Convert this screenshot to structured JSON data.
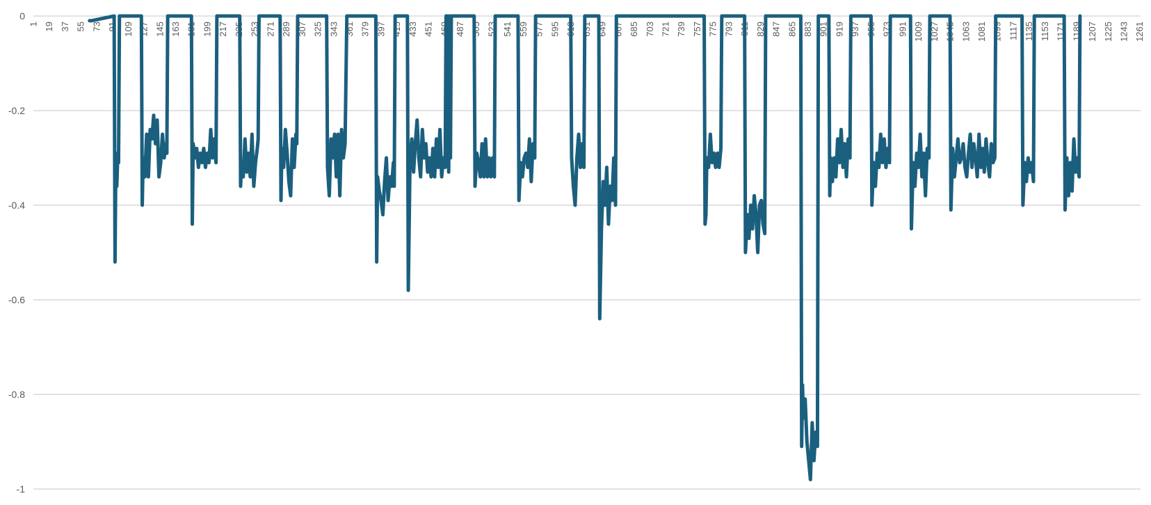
{
  "chart_data": {
    "type": "line",
    "title": "",
    "xlabel": "",
    "ylabel": "",
    "ylim": [
      -1,
      0
    ],
    "yticks": [
      0,
      -0.2,
      -0.4,
      -0.6,
      -0.8,
      -1
    ],
    "ytick_labels": [
      "0",
      "-0.2",
      "-0.4",
      "-0.6",
      "-0.8",
      "-1"
    ],
    "xlim": [
      1,
      1262
    ],
    "xticks": [
      1,
      19,
      37,
      55,
      73,
      91,
      109,
      127,
      145,
      163,
      181,
      199,
      217,
      235,
      253,
      271,
      289,
      307,
      325,
      343,
      361,
      379,
      397,
      415,
      433,
      451,
      469,
      487,
      505,
      523,
      541,
      559,
      577,
      595,
      613,
      631,
      649,
      667,
      685,
      703,
      721,
      739,
      757,
      775,
      793,
      811,
      829,
      847,
      865,
      883,
      901,
      919,
      937,
      955,
      973,
      991,
      1009,
      1027,
      1045,
      1063,
      1081,
      1099,
      1117,
      1135,
      1153,
      1171,
      1189,
      1207,
      1225,
      1243,
      1261
    ],
    "grid": true,
    "legend": "none",
    "colors": {
      "series": "#1b5f7e",
      "grid": "#d0d0d0",
      "text": "#595959"
    },
    "series": [
      {
        "values": [
          [
            65,
            -0.01
          ],
          [
            66,
            -0.01
          ],
          [
            67,
            -0.01
          ],
          [
            93,
            0
          ],
          [
            94,
            -0.52
          ],
          [
            95,
            -0.29
          ],
          [
            96,
            -0.36
          ],
          [
            97,
            -0.3
          ],
          [
            98,
            -0.31
          ],
          [
            99,
            0
          ],
          [
            124,
            0
          ],
          [
            125,
            -0.4
          ],
          [
            126,
            -0.3
          ],
          [
            128,
            -0.34
          ],
          [
            130,
            -0.25
          ],
          [
            132,
            -0.34
          ],
          [
            134,
            -0.24
          ],
          [
            136,
            -0.26
          ],
          [
            138,
            -0.21
          ],
          [
            140,
            -0.27
          ],
          [
            142,
            -0.22
          ],
          [
            144,
            -0.34
          ],
          [
            146,
            -0.31
          ],
          [
            148,
            -0.25
          ],
          [
            150,
            -0.3
          ],
          [
            152,
            -0.27
          ],
          [
            153,
            -0.29
          ],
          [
            154,
            0
          ],
          [
            181,
            0
          ],
          [
            182,
            -0.44
          ],
          [
            183,
            -0.27
          ],
          [
            185,
            -0.3
          ],
          [
            187,
            -0.28
          ],
          [
            189,
            -0.32
          ],
          [
            191,
            -0.29
          ],
          [
            193,
            -0.31
          ],
          [
            195,
            -0.28
          ],
          [
            197,
            -0.32
          ],
          [
            199,
            -0.29
          ],
          [
            201,
            -0.31
          ],
          [
            203,
            -0.24
          ],
          [
            205,
            -0.3
          ],
          [
            207,
            -0.26
          ],
          [
            209,
            -0.31
          ],
          [
            210,
            0
          ],
          [
            236,
            0
          ],
          [
            237,
            -0.36
          ],
          [
            238,
            -0.31
          ],
          [
            240,
            -0.34
          ],
          [
            242,
            -0.26
          ],
          [
            244,
            -0.33
          ],
          [
            246,
            -0.29
          ],
          [
            248,
            -0.34
          ],
          [
            250,
            -0.25
          ],
          [
            252,
            -0.36
          ],
          [
            254,
            -0.31
          ],
          [
            256,
            -0.28
          ],
          [
            257,
            -0.26
          ],
          [
            258,
            0
          ],
          [
            282,
            0
          ],
          [
            283,
            -0.39
          ],
          [
            284,
            -0.28
          ],
          [
            286,
            -0.32
          ],
          [
            288,
            -0.24
          ],
          [
            290,
            -0.29
          ],
          [
            292,
            -0.35
          ],
          [
            294,
            -0.38
          ],
          [
            296,
            -0.26
          ],
          [
            298,
            -0.32
          ],
          [
            300,
            -0.25
          ],
          [
            301,
            -0.27
          ],
          [
            302,
            0
          ],
          [
            335,
            0
          ],
          [
            336,
            -0.32
          ],
          [
            338,
            -0.38
          ],
          [
            340,
            -0.26
          ],
          [
            342,
            -0.3
          ],
          [
            344,
            -0.25
          ],
          [
            346,
            -0.34
          ],
          [
            348,
            -0.25
          ],
          [
            350,
            -0.38
          ],
          [
            352,
            -0.24
          ],
          [
            354,
            -0.3
          ],
          [
            356,
            -0.27
          ],
          [
            358,
            0
          ],
          [
            391,
            0
          ],
          [
            392,
            -0.52
          ],
          [
            393,
            -0.34
          ],
          [
            395,
            -0.37
          ],
          [
            397,
            -0.39
          ],
          [
            399,
            -0.42
          ],
          [
            401,
            -0.35
          ],
          [
            403,
            -0.3
          ],
          [
            405,
            -0.39
          ],
          [
            407,
            -0.34
          ],
          [
            409,
            -0.36
          ],
          [
            411,
            -0.31
          ],
          [
            412,
            -0.36
          ],
          [
            413,
            0
          ],
          [
            427,
            0
          ],
          [
            428,
            -0.58
          ],
          [
            430,
            -0.3
          ],
          [
            432,
            -0.26
          ],
          [
            434,
            -0.33
          ],
          [
            436,
            -0.27
          ],
          [
            438,
            -0.22
          ],
          [
            440,
            -0.3
          ],
          [
            442,
            -0.34
          ],
          [
            444,
            -0.24
          ],
          [
            446,
            -0.3
          ],
          [
            448,
            -0.27
          ],
          [
            450,
            -0.33
          ],
          [
            452,
            -0.3
          ],
          [
            454,
            -0.34
          ],
          [
            456,
            -0.28
          ],
          [
            458,
            -0.34
          ],
          [
            460,
            -0.26
          ],
          [
            462,
            -0.32
          ],
          [
            464,
            -0.24
          ],
          [
            466,
            -0.34
          ],
          [
            468,
            -0.3
          ],
          [
            470,
            -0.32
          ],
          [
            471,
            0
          ],
          [
            473,
            0
          ],
          [
            474,
            -0.33
          ],
          [
            475,
            0
          ],
          [
            476,
            -0.3
          ],
          [
            477,
            0
          ],
          [
            503,
            0
          ],
          [
            504,
            -0.36
          ],
          [
            506,
            -0.29
          ],
          [
            508,
            -0.31
          ],
          [
            510,
            -0.34
          ],
          [
            512,
            -0.27
          ],
          [
            514,
            -0.34
          ],
          [
            516,
            -0.26
          ],
          [
            518,
            -0.34
          ],
          [
            520,
            -0.3
          ],
          [
            522,
            -0.34
          ],
          [
            524,
            -0.3
          ],
          [
            526,
            -0.34
          ],
          [
            527,
            0
          ],
          [
            553,
            0
          ],
          [
            554,
            -0.39
          ],
          [
            556,
            -0.31
          ],
          [
            558,
            -0.34
          ],
          [
            560,
            -0.3
          ],
          [
            562,
            -0.29
          ],
          [
            564,
            -0.32
          ],
          [
            566,
            -0.26
          ],
          [
            568,
            -0.35
          ],
          [
            570,
            -0.27
          ],
          [
            572,
            -0.3
          ],
          [
            573,
            0
          ],
          [
            613,
            0
          ],
          [
            614,
            -0.3
          ],
          [
            616,
            -0.36
          ],
          [
            618,
            -0.4
          ],
          [
            620,
            -0.3
          ],
          [
            622,
            -0.25
          ],
          [
            624,
            -0.32
          ],
          [
            626,
            -0.27
          ],
          [
            628,
            -0.32
          ],
          [
            629,
            0
          ],
          [
            645,
            0
          ],
          [
            646,
            -0.64
          ],
          [
            648,
            -0.45
          ],
          [
            650,
            -0.35
          ],
          [
            652,
            -0.4
          ],
          [
            654,
            -0.32
          ],
          [
            656,
            -0.44
          ],
          [
            658,
            -0.36
          ],
          [
            660,
            -0.39
          ],
          [
            662,
            -0.3
          ],
          [
            664,
            -0.4
          ],
          [
            665,
            0
          ],
          [
            765,
            0
          ],
          [
            766,
            -0.44
          ],
          [
            767,
            -0.42
          ],
          [
            768,
            -0.3
          ],
          [
            770,
            -0.32
          ],
          [
            772,
            -0.25
          ],
          [
            774,
            -0.31
          ],
          [
            776,
            -0.29
          ],
          [
            778,
            -0.32
          ],
          [
            780,
            -0.29
          ],
          [
            782,
            -0.32
          ],
          [
            784,
            -0.28
          ],
          [
            785,
            0
          ],
          [
            811,
            0
          ],
          [
            812,
            -0.5
          ],
          [
            814,
            -0.42
          ],
          [
            816,
            -0.47
          ],
          [
            818,
            -0.4
          ],
          [
            820,
            -0.45
          ],
          [
            822,
            -0.38
          ],
          [
            824,
            -0.42
          ],
          [
            826,
            -0.5
          ],
          [
            828,
            -0.4
          ],
          [
            830,
            -0.39
          ],
          [
            832,
            -0.44
          ],
          [
            834,
            -0.46
          ],
          [
            835,
            0
          ],
          [
            875,
            0
          ],
          [
            876,
            -0.91
          ],
          [
            877,
            -0.78
          ],
          [
            878,
            -0.85
          ],
          [
            880,
            -0.81
          ],
          [
            882,
            -0.9
          ],
          [
            884,
            -0.94
          ],
          [
            886,
            -0.98
          ],
          [
            888,
            -0.86
          ],
          [
            890,
            -0.94
          ],
          [
            892,
            -0.88
          ],
          [
            894,
            -0.91
          ],
          [
            895,
            0
          ],
          [
            907,
            0
          ],
          [
            908,
            -0.38
          ],
          [
            909,
            -0.3
          ],
          [
            911,
            -0.35
          ],
          [
            913,
            -0.3
          ],
          [
            915,
            -0.34
          ],
          [
            917,
            -0.26
          ],
          [
            919,
            -0.31
          ],
          [
            921,
            -0.24
          ],
          [
            923,
            -0.32
          ],
          [
            925,
            -0.27
          ],
          [
            927,
            -0.34
          ],
          [
            929,
            -0.26
          ],
          [
            931,
            -0.3
          ],
          [
            932,
            0
          ],
          [
            955,
            0
          ],
          [
            956,
            -0.4
          ],
          [
            958,
            -0.31
          ],
          [
            960,
            -0.36
          ],
          [
            962,
            -0.29
          ],
          [
            964,
            -0.32
          ],
          [
            966,
            -0.25
          ],
          [
            968,
            -0.31
          ],
          [
            970,
            -0.26
          ],
          [
            972,
            -0.32
          ],
          [
            974,
            -0.28
          ],
          [
            976,
            -0.31
          ],
          [
            977,
            0
          ],
          [
            1000,
            0
          ],
          [
            1001,
            -0.45
          ],
          [
            1003,
            -0.31
          ],
          [
            1005,
            -0.36
          ],
          [
            1007,
            -0.29
          ],
          [
            1009,
            -0.32
          ],
          [
            1011,
            -0.25
          ],
          [
            1013,
            -0.34
          ],
          [
            1015,
            -0.29
          ],
          [
            1017,
            -0.38
          ],
          [
            1019,
            -0.28
          ],
          [
            1021,
            -0.3
          ],
          [
            1022,
            0
          ],
          [
            1045,
            0
          ],
          [
            1046,
            -0.41
          ],
          [
            1048,
            -0.28
          ],
          [
            1050,
            -0.34
          ],
          [
            1052,
            -0.3
          ],
          [
            1054,
            -0.26
          ],
          [
            1056,
            -0.31
          ],
          [
            1058,
            -0.3
          ],
          [
            1060,
            -0.27
          ],
          [
            1062,
            -0.32
          ],
          [
            1064,
            -0.34
          ],
          [
            1066,
            -0.29
          ],
          [
            1068,
            -0.25
          ],
          [
            1070,
            -0.32
          ],
          [
            1072,
            -0.27
          ],
          [
            1074,
            -0.3
          ],
          [
            1076,
            -0.34
          ],
          [
            1078,
            -0.25
          ],
          [
            1080,
            -0.32
          ],
          [
            1082,
            -0.28
          ],
          [
            1084,
            -0.33
          ],
          [
            1086,
            -0.26
          ],
          [
            1088,
            -0.31
          ],
          [
            1090,
            -0.34
          ],
          [
            1092,
            -0.27
          ],
          [
            1094,
            -0.31
          ],
          [
            1096,
            -0.3
          ],
          [
            1097,
            0
          ],
          [
            1127,
            0
          ],
          [
            1128,
            -0.4
          ],
          [
            1130,
            -0.31
          ],
          [
            1132,
            -0.35
          ],
          [
            1134,
            -0.3
          ],
          [
            1136,
            -0.33
          ],
          [
            1138,
            -0.31
          ],
          [
            1140,
            -0.35
          ],
          [
            1141,
            0
          ],
          [
            1175,
            0
          ],
          [
            1176,
            -0.41
          ],
          [
            1178,
            -0.3
          ],
          [
            1180,
            -0.38
          ],
          [
            1182,
            -0.31
          ],
          [
            1184,
            -0.37
          ],
          [
            1186,
            -0.26
          ],
          [
            1188,
            -0.33
          ],
          [
            1190,
            -0.3
          ],
          [
            1192,
            -0.34
          ],
          [
            1193,
            0
          ]
        ]
      }
    ]
  }
}
